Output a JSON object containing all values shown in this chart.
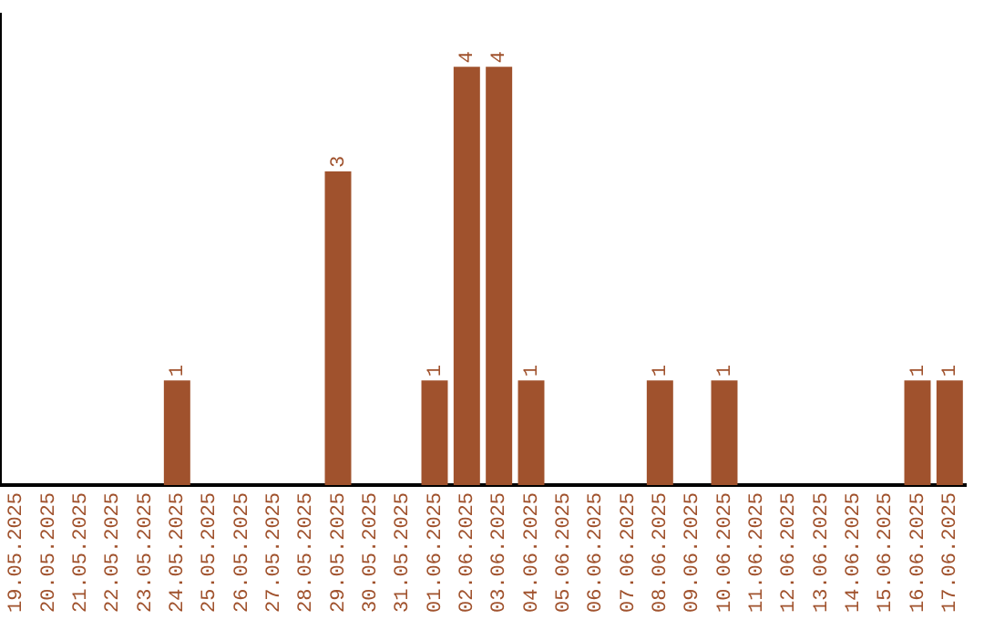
{
  "chart_data": {
    "type": "bar",
    "categories": [
      "19.05.2025",
      "20.05.2025",
      "21.05.2025",
      "22.05.2025",
      "23.05.2025",
      "24.05.2025",
      "25.05.2025",
      "26.05.2025",
      "27.05.2025",
      "28.05.2025",
      "29.05.2025",
      "30.05.2025",
      "31.05.2025",
      "01.06.2025",
      "02.06.2025",
      "03.06.2025",
      "04.06.2025",
      "05.06.2025",
      "06.06.2025",
      "07.06.2025",
      "08.06.2025",
      "09.06.2025",
      "10.06.2025",
      "11.06.2025",
      "12.06.2025",
      "13.06.2025",
      "14.06.2025",
      "15.06.2025",
      "16.06.2025",
      "17.06.2025"
    ],
    "values": [
      0,
      0,
      0,
      0,
      0,
      1,
      0,
      0,
      0,
      0,
      3,
      0,
      0,
      1,
      4,
      4,
      1,
      0,
      0,
      0,
      1,
      0,
      1,
      0,
      0,
      0,
      0,
      0,
      1,
      1
    ],
    "value_labels": [
      null,
      null,
      null,
      null,
      null,
      "1",
      null,
      null,
      null,
      null,
      "3",
      null,
      null,
      "1",
      "4",
      "4",
      "1",
      null,
      null,
      null,
      "1",
      null,
      "1",
      null,
      null,
      null,
      null,
      null,
      "1",
      "1"
    ],
    "color": "#a0522d",
    "tick_labels": "x"
  }
}
